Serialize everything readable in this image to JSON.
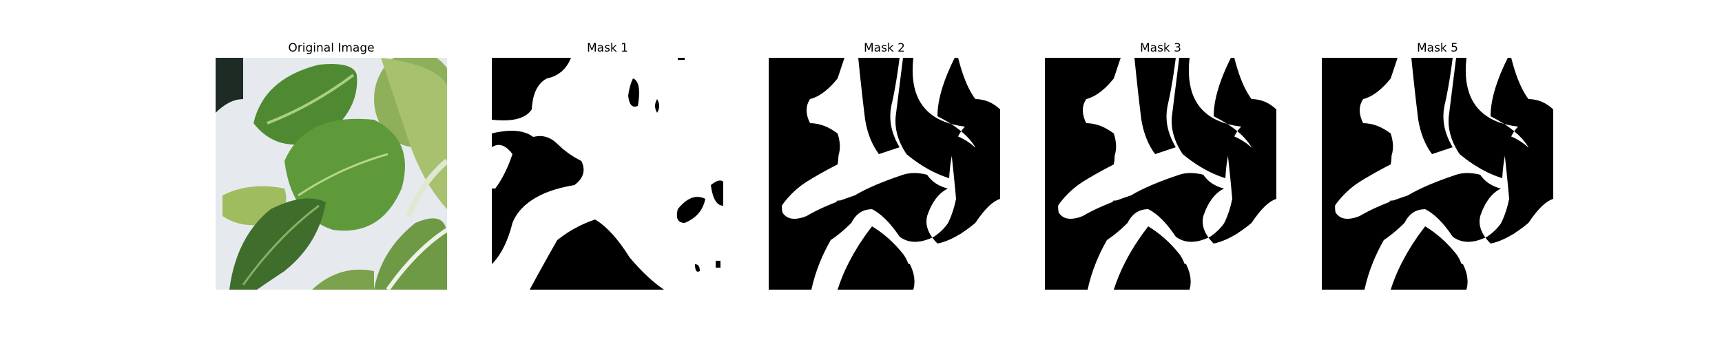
{
  "panels": [
    {
      "title": "Original Image",
      "kind": "photo",
      "icon": "leafy-green-photo"
    },
    {
      "title": "Mask 1",
      "kind": "mask",
      "icon": "binary-mask-image"
    },
    {
      "title": "Mask 2",
      "kind": "mask",
      "icon": "binary-mask-image"
    },
    {
      "title": "Mask 3",
      "kind": "mask",
      "icon": "binary-mask-image"
    },
    {
      "title": "Mask 5",
      "kind": "mask",
      "icon": "binary-mask-image"
    }
  ],
  "colors": {
    "background": "#ffffff",
    "mask_foreground": "#ffffff",
    "mask_background": "#000000",
    "leaf_dark": "#3e6b2a",
    "leaf_mid": "#5f8f3c",
    "leaf_light": "#9dbb6a",
    "backdrop": "#e8ecef"
  }
}
